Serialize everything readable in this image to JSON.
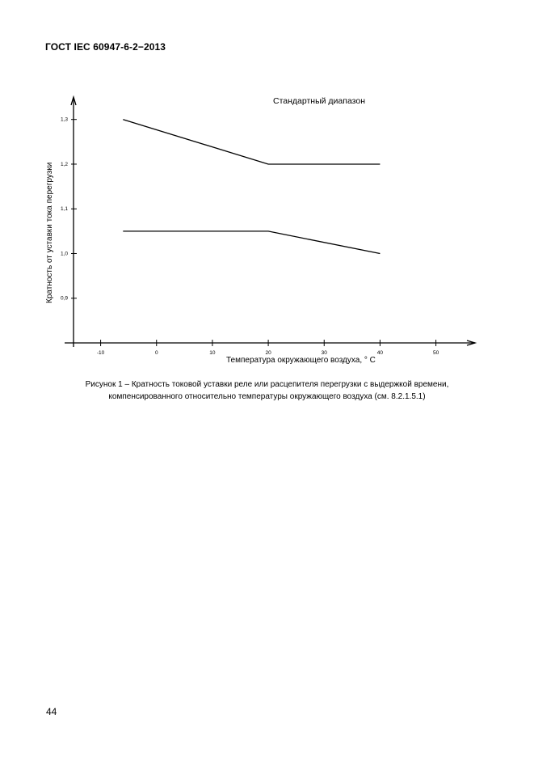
{
  "document": {
    "header": "ГОСТ IEC 60947-6-2−2013",
    "caption_line1": "Рисунок 1 – Кратность токовой уставки реле или расцепителя перегрузки с выдержкой времени,",
    "caption_line2": "компенсированного относительно температуры окружающего воздуха (см. 8.2.1.5.1)",
    "page_number": "44"
  },
  "chart_data": {
    "type": "line",
    "title": "",
    "annotation": "Стандартный диапазон",
    "xlabel": "Температура окружающего воздуха, ° С",
    "ylabel": "Кратность от уставки тока перегрузки",
    "xlim": [
      -15,
      57
    ],
    "ylim": [
      0.8,
      1.34
    ],
    "x_ticks": [
      -10,
      0,
      10,
      20,
      30,
      40,
      50
    ],
    "x_tick_labels": [
      "-10",
      "0",
      "10",
      "20",
      "30",
      "40",
      "50"
    ],
    "y_ticks": [
      0.9,
      1.0,
      1.1,
      1.2,
      1.3
    ],
    "y_tick_labels": [
      "0,9",
      "1,0",
      "1,1",
      "1,2",
      "1,3"
    ],
    "grid": false,
    "legend": "none",
    "series": [
      {
        "x": [
          -6,
          20,
          40
        ],
        "y": [
          1.3,
          1.2,
          1.2
        ]
      },
      {
        "x": [
          -6,
          20,
          40
        ],
        "y": [
          1.05,
          1.05,
          1.0
        ]
      }
    ],
    "line_color": "#000000"
  }
}
